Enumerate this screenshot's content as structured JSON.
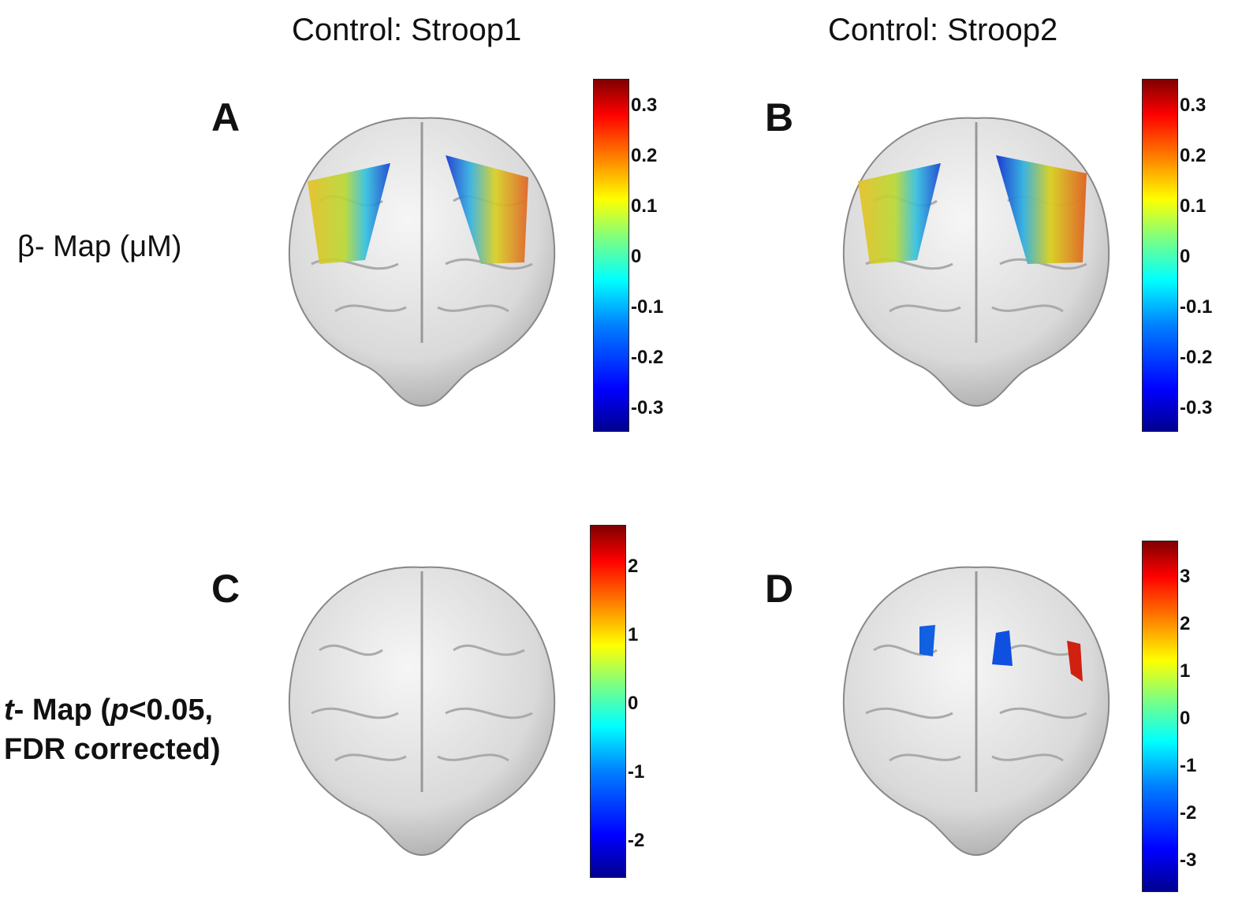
{
  "columns": {
    "left_title": "Control: Stroop1",
    "right_title": "Control: Stroop2"
  },
  "rows": {
    "beta_label": "β- Map (μM)",
    "t_label": {
      "t": "t",
      "part1": "- Map (",
      "p": "p",
      "part2": "<0.05,",
      "line2": "FDR corrected)"
    }
  },
  "panels": {
    "A": {
      "letter": "A",
      "ticks": [
        "0.3",
        "0.2",
        "0.1",
        "0",
        "-0.1",
        "-0.2",
        "-0.3"
      ]
    },
    "B": {
      "letter": "B",
      "ticks": [
        "0.3",
        "0.2",
        "0.1",
        "0",
        "-0.1",
        "-0.2",
        "-0.3"
      ]
    },
    "C": {
      "letter": "C",
      "ticks": [
        "2",
        "1",
        "0",
        "-1",
        "-2"
      ]
    },
    "D": {
      "letter": "D",
      "ticks": [
        "3",
        "2",
        "1",
        "0",
        "-1",
        "-2",
        "-3"
      ]
    }
  },
  "colormap": "jet"
}
